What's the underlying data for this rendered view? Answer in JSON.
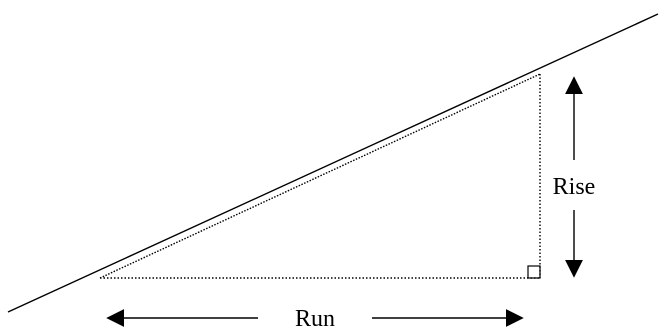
{
  "diagram": {
    "rise_label": "Rise",
    "run_label": "Run"
  },
  "colors": {
    "ink": "#000000",
    "background": "#ffffff"
  }
}
